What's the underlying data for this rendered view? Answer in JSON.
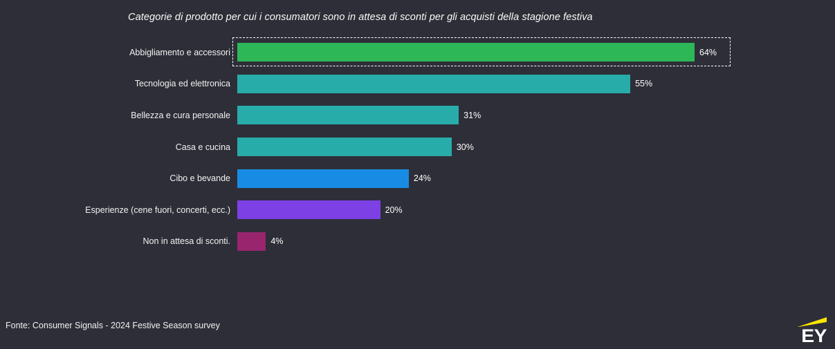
{
  "title": "Categorie di prodotto per cui i consumatori sono in attesa di sconti per gli acquisti della stagione festiva",
  "source": "Fonte: Consumer Signals - 2024 Festive Season survey",
  "logo": {
    "text": "EY",
    "beam_color": "#ffe600"
  },
  "colors": {
    "background": "#2e2e38",
    "text": "#ffffff",
    "highlight_border": "#ffffff"
  },
  "chart_data": {
    "type": "bar",
    "orientation": "horizontal",
    "title": "Categorie di prodotto per cui i consumatori sono in attesa di sconti per gli acquisti della stagione festiva",
    "categories": [
      "Abbigliamento e accessori",
      "Tecnologia ed elettronica",
      "Bellezza e cura personale",
      "Casa e cucina",
      "Cibo e bevande",
      "Esperienze (cene fuori, concerti, ecc.)",
      "Non in attesa di sconti."
    ],
    "values": [
      64,
      55,
      31,
      30,
      24,
      20,
      4
    ],
    "value_labels": [
      "64%",
      "55%",
      "31%",
      "30%",
      "24%",
      "20%",
      "4%"
    ],
    "unit": "%",
    "bar_colors": [
      "#2db757",
      "#27acaa",
      "#27acaa",
      "#27acaa",
      "#188ce5",
      "#7d40e5",
      "#98256e"
    ],
    "highlighted_category": "Abbigliamento e accessori",
    "highlight_index": 0,
    "xlim": [
      0,
      70
    ],
    "grid": false,
    "legend": false,
    "xlabel": "",
    "ylabel": ""
  }
}
